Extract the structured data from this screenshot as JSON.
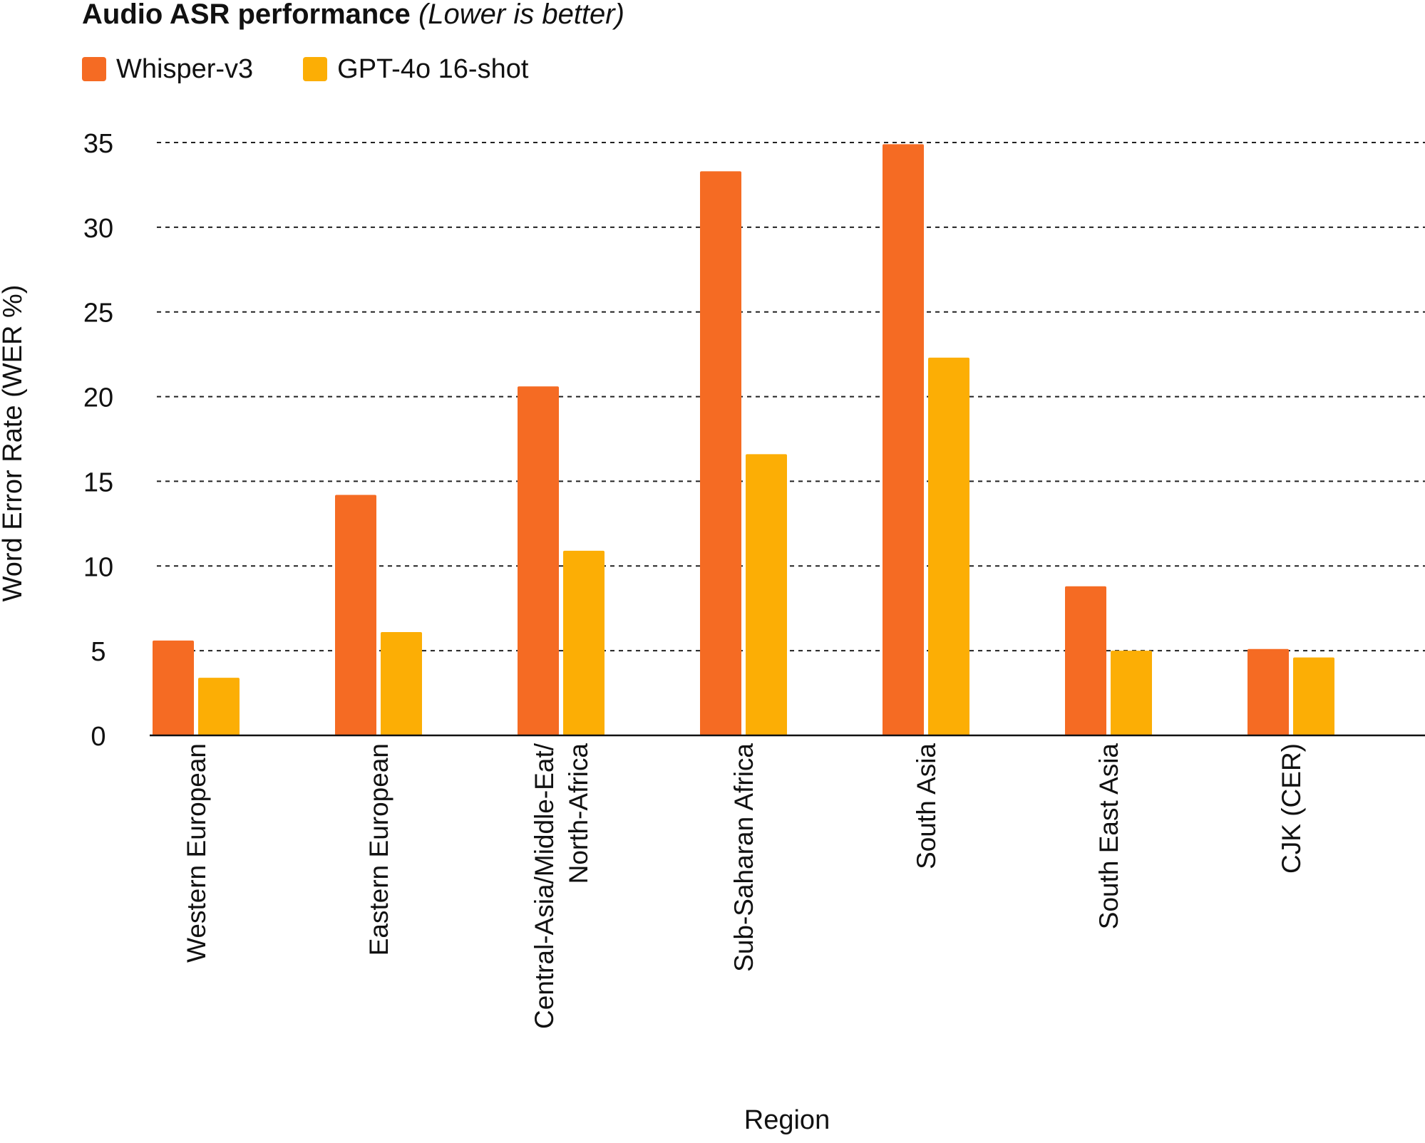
{
  "chart_data": {
    "type": "bar",
    "title": "Audio ASR performance",
    "title_note": "(Lower is better)",
    "xlabel": "Region",
    "ylabel": "Word Error Rate (WER %)",
    "ylim": [
      0,
      35
    ],
    "yticks": [
      0,
      5,
      10,
      15,
      20,
      25,
      30,
      35
    ],
    "grid": true,
    "legend_position": "top-left",
    "categories": [
      "Western European",
      "Eastern European",
      "Central-Asia/Middle-Eat/\nNorth-Africa",
      "Sub-Saharan Africa",
      "South Asia",
      "South East Asia",
      "CJK (CER)"
    ],
    "series": [
      {
        "name": "Whisper-v3",
        "color": "#F56B23",
        "values": [
          5.6,
          14.2,
          20.6,
          33.3,
          34.9,
          8.8,
          5.1
        ]
      },
      {
        "name": "GPT-4o 16-shot",
        "color": "#FCAE05",
        "values": [
          3.4,
          6.1,
          10.9,
          16.6,
          22.3,
          5.0,
          4.6
        ]
      }
    ]
  }
}
